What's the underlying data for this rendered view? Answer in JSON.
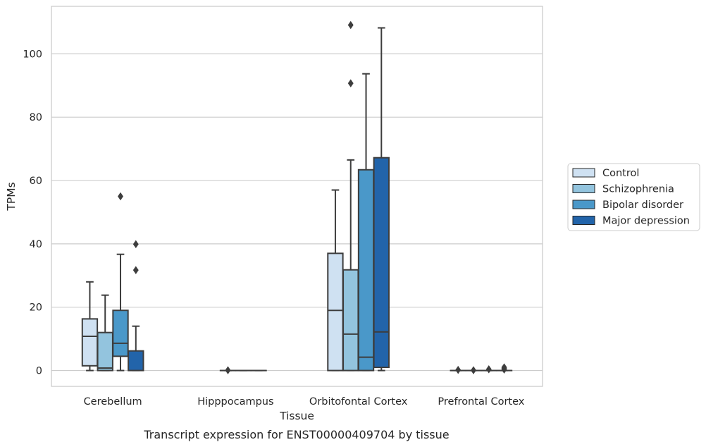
{
  "chart_data": {
    "type": "box",
    "caption": "Transcript expression for ENST00000409704 by tissue",
    "xlabel": "Tissue",
    "ylabel": "TPMs",
    "ylim": [
      -5,
      115
    ],
    "yticks": [
      0,
      20,
      40,
      60,
      80,
      100
    ],
    "grid": "horizontal",
    "legend_position": "right",
    "categories": [
      "Cerebellum",
      "Hipppocampus",
      "Orbitofontal Cortex",
      "Prefrontal Cortex"
    ],
    "series": [
      {
        "name": "Control",
        "color": "#cfe1f2",
        "boxes": [
          {
            "whisker_low": 0,
            "q1": 1.5,
            "median": 10.8,
            "q3": 16.3,
            "whisker_high": 28,
            "outliers": []
          },
          null,
          {
            "whisker_low": 0,
            "q1": 0,
            "median": 19,
            "q3": 37,
            "whisker_high": 57,
            "outliers": []
          },
          {
            "whisker_low": 0,
            "q1": 0,
            "median": 0,
            "q3": 0,
            "whisker_high": 0,
            "outliers": [
              0.2
            ]
          }
        ]
      },
      {
        "name": "Schizophrenia",
        "color": "#93c4de",
        "boxes": [
          {
            "whisker_low": 0,
            "q1": 0,
            "median": 0.8,
            "q3": 12,
            "whisker_high": 23.8,
            "outliers": []
          },
          {
            "whisker_low": 0,
            "q1": 0,
            "median": 0,
            "q3": 0,
            "whisker_high": 0,
            "outliers": [
              0.1
            ]
          },
          {
            "whisker_low": 0,
            "q1": 0,
            "median": 11.5,
            "q3": 31.8,
            "whisker_high": 66.5,
            "outliers": [
              90.7,
              109.1
            ]
          },
          {
            "whisker_low": 0,
            "q1": 0,
            "median": 0,
            "q3": 0,
            "whisker_high": 0,
            "outliers": [
              0.1
            ]
          }
        ]
      },
      {
        "name": "Bipolar disorder",
        "color": "#4a98c9",
        "boxes": [
          {
            "whisker_low": 0,
            "q1": 4.5,
            "median": 8.6,
            "q3": 19,
            "whisker_high": 36.7,
            "outliers": [
              55
            ]
          },
          {
            "whisker_low": 0,
            "q1": 0,
            "median": 0,
            "q3": 0,
            "whisker_high": 0,
            "outliers": []
          },
          {
            "whisker_low": 0,
            "q1": 0,
            "median": 4.2,
            "q3": 63.4,
            "whisker_high": 93.7,
            "outliers": []
          },
          {
            "whisker_low": 0,
            "q1": 0,
            "median": 0,
            "q3": 0,
            "whisker_high": 0,
            "outliers": [
              0.4
            ]
          }
        ]
      },
      {
        "name": "Major depression",
        "color": "#2264aa",
        "boxes": [
          {
            "whisker_low": 0,
            "q1": 0,
            "median": 0,
            "q3": 6.2,
            "whisker_high": 14,
            "outliers": [
              31.7,
              39.9
            ]
          },
          {
            "whisker_low": 0,
            "q1": 0,
            "median": 0,
            "q3": 0,
            "whisker_high": 0,
            "outliers": []
          },
          {
            "whisker_low": 0,
            "q1": 1,
            "median": 12.2,
            "q3": 67.2,
            "whisker_high": 108.2,
            "outliers": []
          },
          {
            "whisker_low": 0,
            "q1": 0,
            "median": 0,
            "q3": 0,
            "whisker_high": 0,
            "outliers": [
              0.3,
              0.7,
              1.0
            ]
          }
        ]
      }
    ]
  }
}
